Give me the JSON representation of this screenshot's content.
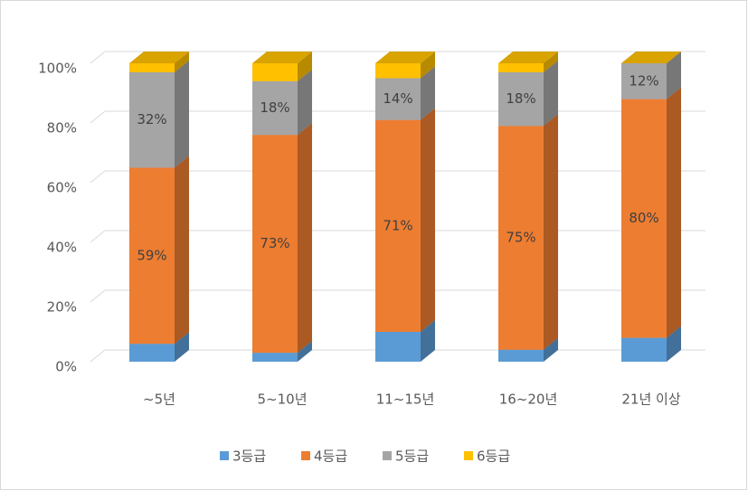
{
  "chart_data": {
    "type": "bar3d_stacked",
    "categories": [
      "~5년",
      "5~10년",
      "11~15년",
      "16~20년",
      "21년 이상"
    ],
    "series": [
      {
        "name": "3등급",
        "color": "#5b9bd5",
        "values": [
          6,
          3,
          10,
          4,
          8
        ]
      },
      {
        "name": "4등급",
        "color": "#ed7d31",
        "values": [
          59,
          73,
          71,
          75,
          80
        ],
        "value_labels": [
          "59%",
          "73%",
          "71%",
          "75%",
          "80%"
        ]
      },
      {
        "name": "5등급",
        "color": "#a5a5a5",
        "values": [
          32,
          18,
          14,
          18,
          12
        ],
        "value_labels": [
          "32%",
          "18%",
          "14%",
          "18%",
          "12%"
        ]
      },
      {
        "name": "6등급",
        "color": "#ffc000",
        "values": [
          3,
          6,
          5,
          3,
          0
        ]
      }
    ],
    "ylim": [
      0,
      100
    ],
    "yticks": [
      {
        "value": 0,
        "label": "0%"
      },
      {
        "value": 20,
        "label": "20%"
      },
      {
        "value": 40,
        "label": "40%"
      },
      {
        "value": 60,
        "label": "60%"
      },
      {
        "value": 80,
        "label": "80%"
      },
      {
        "value": 100,
        "label": "100%"
      }
    ],
    "grid": true,
    "legend": "bottom"
  }
}
